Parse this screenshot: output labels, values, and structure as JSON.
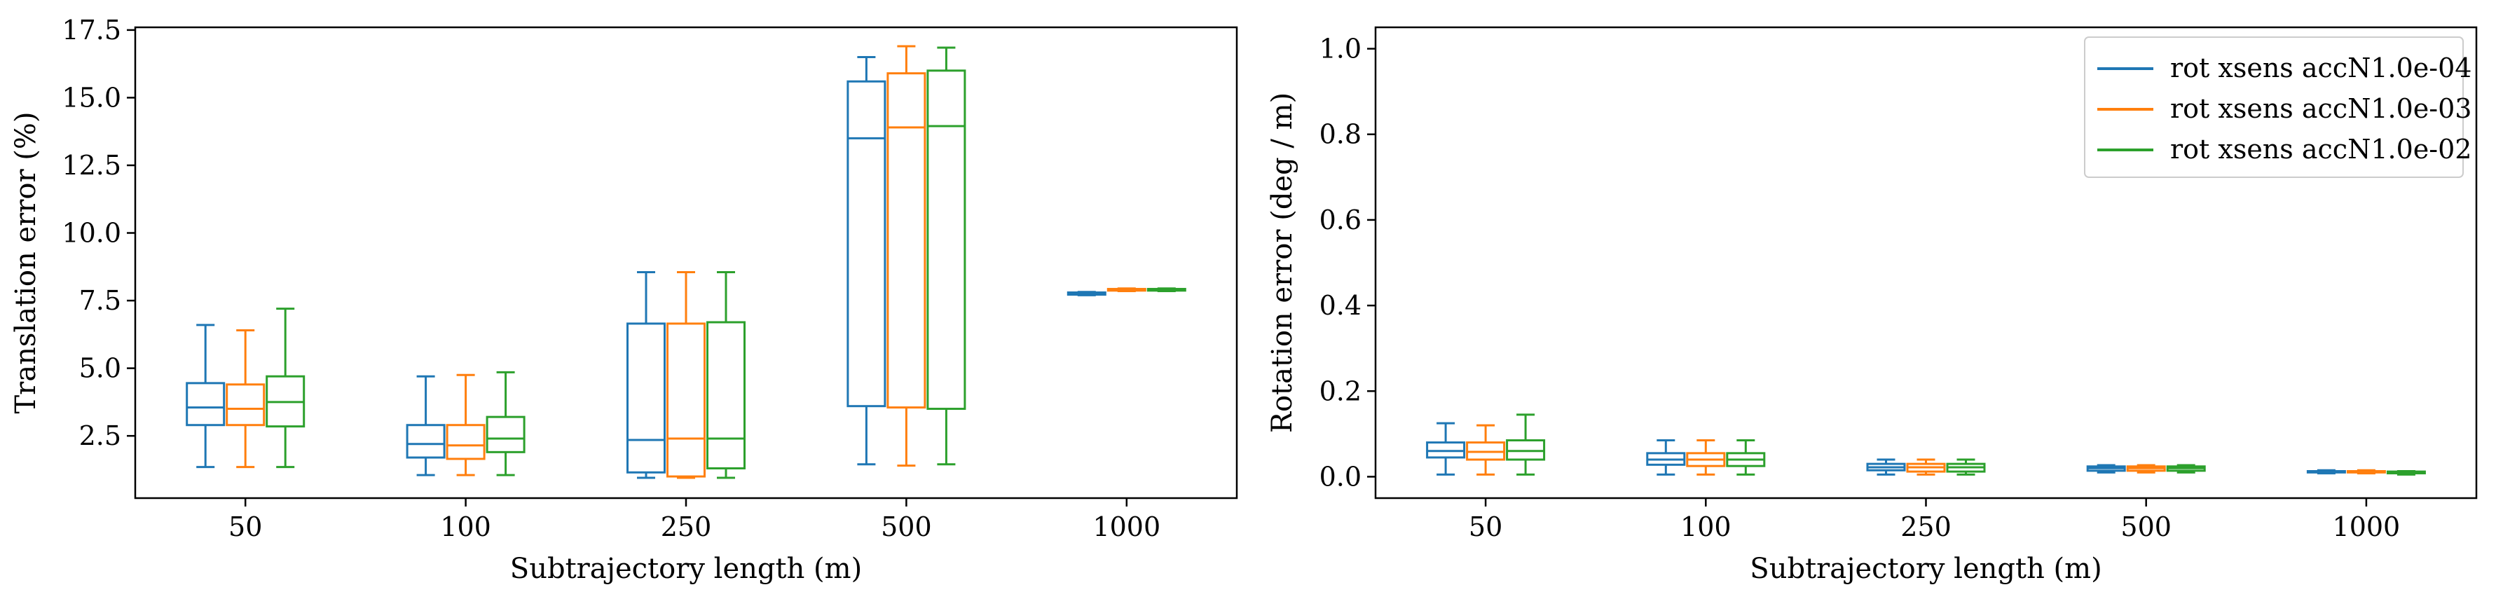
{
  "chart_data": [
    {
      "type": "boxplot",
      "xlabel": "Subtrajectory length (m)",
      "ylabel": "Translation error (%)",
      "categories": [
        "50",
        "100",
        "250",
        "500",
        "1000"
      ],
      "ylim": [
        0.2,
        17.6
      ],
      "yticks": [
        2.5,
        5.0,
        7.5,
        10.0,
        12.5,
        15.0,
        17.5
      ],
      "ytick_labels": [
        "2.5",
        "5.0",
        "7.5",
        "10.0",
        "12.5",
        "15.0",
        "17.5"
      ],
      "grid": false,
      "series": [
        {
          "name": "rot xsens accN1.0e-04",
          "color": "#1f77b4",
          "boxes": [
            {
              "whislo": 1.35,
              "q1": 2.9,
              "med": 3.55,
              "q3": 4.45,
              "whishi": 6.6
            },
            {
              "whislo": 1.05,
              "q1": 1.7,
              "med": 2.2,
              "q3": 2.9,
              "whishi": 4.7
            },
            {
              "whislo": 0.95,
              "q1": 1.15,
              "med": 2.35,
              "q3": 6.65,
              "whishi": 8.55
            },
            {
              "whislo": 1.45,
              "q1": 3.6,
              "med": 13.5,
              "q3": 15.6,
              "whishi": 16.5
            },
            {
              "whislo": 7.7,
              "q1": 7.72,
              "med": 7.75,
              "q3": 7.8,
              "whishi": 7.82
            }
          ]
        },
        {
          "name": "rot xsens accN1.0e-03",
          "color": "#ff7f0e",
          "boxes": [
            {
              "whislo": 1.35,
              "q1": 2.9,
              "med": 3.5,
              "q3": 4.4,
              "whishi": 6.4
            },
            {
              "whislo": 1.05,
              "q1": 1.65,
              "med": 2.15,
              "q3": 2.9,
              "whishi": 4.75
            },
            {
              "whislo": 0.95,
              "q1": 1.0,
              "med": 2.4,
              "q3": 6.65,
              "whishi": 8.55
            },
            {
              "whislo": 1.4,
              "q1": 3.55,
              "med": 13.9,
              "q3": 15.9,
              "whishi": 16.9
            },
            {
              "whislo": 7.85,
              "q1": 7.87,
              "med": 7.9,
              "q3": 7.93,
              "whishi": 7.95
            }
          ]
        },
        {
          "name": "rot xsens accN1.0e-02",
          "color": "#2ca02c",
          "boxes": [
            {
              "whislo": 1.35,
              "q1": 2.85,
              "med": 3.75,
              "q3": 4.7,
              "whishi": 7.2
            },
            {
              "whislo": 1.05,
              "q1": 1.9,
              "med": 2.4,
              "q3": 3.2,
              "whishi": 4.85
            },
            {
              "whislo": 0.95,
              "q1": 1.3,
              "med": 2.4,
              "q3": 6.7,
              "whishi": 8.55
            },
            {
              "whislo": 1.45,
              "q1": 3.5,
              "med": 13.95,
              "q3": 16.0,
              "whishi": 16.85
            },
            {
              "whislo": 7.85,
              "q1": 7.87,
              "med": 7.9,
              "q3": 7.93,
              "whishi": 7.95
            }
          ]
        }
      ]
    },
    {
      "type": "boxplot",
      "xlabel": "Subtrajectory length (m)",
      "ylabel": "Rotation error (deg / m)",
      "categories": [
        "50",
        "100",
        "250",
        "500",
        "1000"
      ],
      "ylim": [
        -0.05,
        1.05
      ],
      "yticks": [
        0.0,
        0.2,
        0.4,
        0.6,
        0.8,
        1.0
      ],
      "ytick_labels": [
        "0.0",
        "0.2",
        "0.4",
        "0.6",
        "0.8",
        "1.0"
      ],
      "grid": false,
      "legend": {
        "position": "top-right",
        "entries": [
          "rot xsens accN1.0e-04",
          "rot xsens accN1.0e-03",
          "rot xsens accN1.0e-02"
        ]
      },
      "series": [
        {
          "name": "rot xsens accN1.0e-04",
          "color": "#1f77b4",
          "boxes": [
            {
              "whislo": 0.005,
              "q1": 0.045,
              "med": 0.06,
              "q3": 0.08,
              "whishi": 0.125
            },
            {
              "whislo": 0.005,
              "q1": 0.028,
              "med": 0.04,
              "q3": 0.055,
              "whishi": 0.085
            },
            {
              "whislo": 0.005,
              "q1": 0.015,
              "med": 0.022,
              "q3": 0.03,
              "whishi": 0.04
            },
            {
              "whislo": 0.01,
              "q1": 0.014,
              "med": 0.02,
              "q3": 0.024,
              "whishi": 0.027
            },
            {
              "whislo": 0.008,
              "q1": 0.01,
              "med": 0.012,
              "q3": 0.013,
              "whishi": 0.015
            }
          ]
        },
        {
          "name": "rot xsens accN1.0e-03",
          "color": "#ff7f0e",
          "boxes": [
            {
              "whislo": 0.005,
              "q1": 0.04,
              "med": 0.058,
              "q3": 0.08,
              "whishi": 0.12
            },
            {
              "whislo": 0.005,
              "q1": 0.025,
              "med": 0.04,
              "q3": 0.055,
              "whishi": 0.085
            },
            {
              "whislo": 0.005,
              "q1": 0.012,
              "med": 0.022,
              "q3": 0.03,
              "whishi": 0.04
            },
            {
              "whislo": 0.01,
              "q1": 0.014,
              "med": 0.02,
              "q3": 0.024,
              "whishi": 0.027
            },
            {
              "whislo": 0.008,
              "q1": 0.01,
              "med": 0.012,
              "q3": 0.013,
              "whishi": 0.015
            }
          ]
        },
        {
          "name": "rot xsens accN1.0e-02",
          "color": "#2ca02c",
          "boxes": [
            {
              "whislo": 0.005,
              "q1": 0.04,
              "med": 0.06,
              "q3": 0.085,
              "whishi": 0.145
            },
            {
              "whislo": 0.005,
              "q1": 0.025,
              "med": 0.04,
              "q3": 0.055,
              "whishi": 0.085
            },
            {
              "whislo": 0.005,
              "q1": 0.012,
              "med": 0.022,
              "q3": 0.03,
              "whishi": 0.04
            },
            {
              "whislo": 0.01,
              "q1": 0.014,
              "med": 0.02,
              "q3": 0.024,
              "whishi": 0.027
            },
            {
              "whislo": 0.005,
              "q1": 0.008,
              "med": 0.01,
              "q3": 0.012,
              "whishi": 0.013
            }
          ]
        }
      ]
    }
  ]
}
